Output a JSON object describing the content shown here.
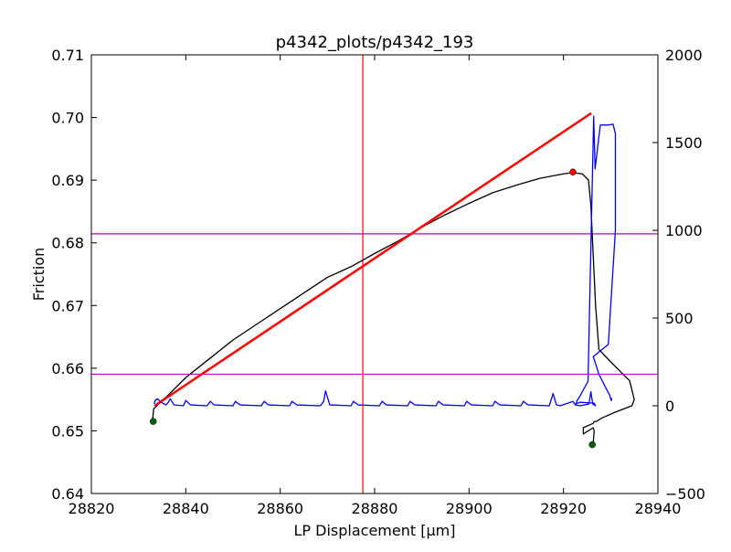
{
  "chart_data": {
    "type": "line",
    "title": "p4342_plots/p4342_193",
    "xlabel": "LP Displacement [μm]",
    "ylabel": "Friction",
    "y2label": "",
    "xlim": [
      28820,
      28940
    ],
    "ylim": [
      0.64,
      0.71
    ],
    "y2lim": [
      -500,
      2000
    ],
    "xticks": [
      28820,
      28840,
      28860,
      28880,
      28900,
      28920,
      28940
    ],
    "yticks": [
      0.64,
      0.65,
      0.66,
      0.67,
      0.68,
      0.69,
      0.7,
      0.71
    ],
    "y2ticks": [
      -500,
      0,
      500,
      1000,
      1500,
      2000
    ],
    "grid": false,
    "colors": {
      "friction": "#000000",
      "fit": "#ff0000",
      "secondary": "#0000ff",
      "hlines": "#bf00bf",
      "vline": "#ff0000",
      "endpoints": "#006400",
      "peak": "#ff0000"
    },
    "series": [
      {
        "axis": "left",
        "color": "#000000",
        "x": [
          28833.0,
          28833.2,
          28834.5,
          28836,
          28840,
          28845,
          28850,
          28855,
          28860,
          28865,
          28870,
          28875,
          28880,
          28885,
          28890,
          28895,
          28900,
          28905,
          28910,
          28915,
          28920,
          28922,
          28924,
          28925.3,
          28925.8,
          28926.3,
          28926.8,
          28927.5,
          28930,
          28932,
          28934,
          28935,
          28934.5,
          28931,
          28928,
          28927,
          28926.5,
          28926.3,
          28924.2,
          28924.2,
          28926.3,
          28926.5,
          28926.3
        ],
        "y": [
          0.652,
          0.6535,
          0.6545,
          0.6555,
          0.6585,
          0.6615,
          0.6645,
          0.667,
          0.6695,
          0.672,
          0.6745,
          0.6762,
          0.6783,
          0.6803,
          0.6825,
          0.6845,
          0.6863,
          0.688,
          0.6892,
          0.6903,
          0.691,
          0.6912,
          0.691,
          0.69,
          0.686,
          0.678,
          0.67,
          0.663,
          0.661,
          0.6595,
          0.658,
          0.655,
          0.654,
          0.653,
          0.652,
          0.6515,
          0.6515,
          0.6512,
          0.6505,
          0.6495,
          0.6505,
          0.65,
          0.648
        ]
      },
      {
        "axis": "right",
        "color": "#0000ff",
        "x": [
          28833.3,
          28833.5,
          28834.0,
          28834.8,
          28835.8,
          28836.3,
          28836.7,
          28837.5,
          28839.5,
          28840.0,
          28841.0,
          28844.5,
          28845.2,
          28846,
          28850,
          28850.5,
          28851.5,
          28856,
          28856.6,
          28857.5,
          28862,
          28862.5,
          28863.5,
          28868.5,
          28869.2,
          28869.6,
          28870.5,
          28875,
          28875.5,
          28876.5,
          28881,
          28881.6,
          28882.5,
          28887,
          28887.5,
          28888.5,
          28893,
          28893.5,
          28894.5,
          28899,
          28899.5,
          28900.5,
          28905,
          28905.5,
          28906.5,
          28911,
          28911.5,
          28912.5,
          28917,
          28917.8,
          28918.5,
          28919.3,
          28922,
          28922.5,
          28923.5,
          28925.4,
          28925.8,
          28926.2,
          28926.8,
          28926.5,
          28923.5,
          28922.6,
          28922.9,
          28923.6,
          28925.2,
          28926.4,
          28926.7,
          28927.8,
          28929.5,
          28930.5,
          28931.0,
          28931.0,
          28929.5,
          28926.3,
          28926.8,
          28927.5,
          28929,
          28929.8,
          28930,
          28930.1,
          28930.2,
          28930.2,
          28930
        ],
        "y": [
          10,
          30,
          40,
          20,
          5,
          20,
          40,
          5,
          0,
          30,
          5,
          0,
          25,
          5,
          0,
          25,
          5,
          0,
          25,
          5,
          0,
          25,
          5,
          0,
          25,
          85,
          5,
          0,
          25,
          5,
          0,
          25,
          5,
          0,
          25,
          5,
          0,
          25,
          5,
          0,
          25,
          5,
          0,
          25,
          5,
          0,
          25,
          5,
          0,
          70,
          5,
          0,
          25,
          5,
          0,
          10,
          80,
          10,
          0,
          15,
          20,
          10,
          30,
          60,
          140,
          1650,
          1350,
          1600,
          1600,
          1605,
          1550,
          1000,
          350,
          280,
          240,
          180,
          100,
          60,
          40,
          30,
          35,
          40,
          45
        ]
      },
      {
        "axis": "left",
        "color": "#ff0000",
        "x": [
          28833.4,
          28925.9
        ],
        "y": [
          0.654,
          0.7007
        ]
      }
    ],
    "hlines_right": [
      180,
      980
    ],
    "vline_x": 28877.5,
    "markers": [
      {
        "x": 28833.1,
        "y": 0.6515,
        "color": "#006400",
        "axis": "left"
      },
      {
        "x": 28926.1,
        "y": 0.6478,
        "color": "#006400",
        "axis": "left"
      },
      {
        "x": 28922.0,
        "y": 0.6913,
        "color": "#ff0000",
        "axis": "left"
      }
    ]
  }
}
